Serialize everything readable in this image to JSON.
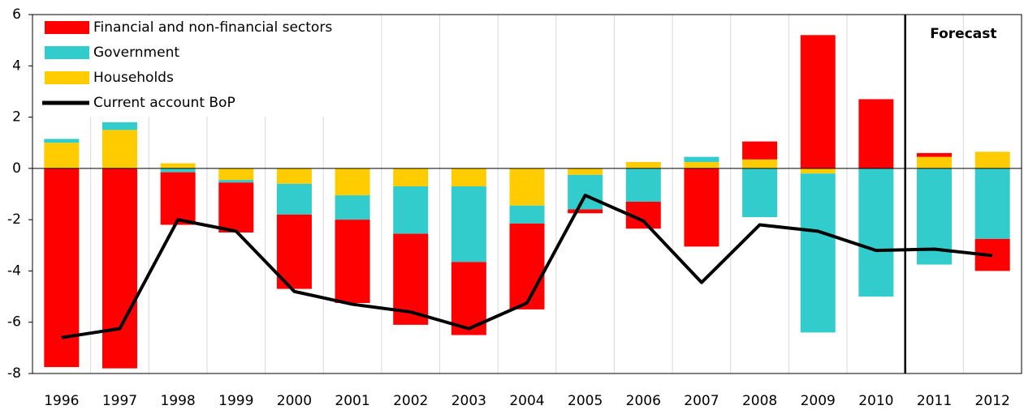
{
  "chart_data": {
    "type": "bar",
    "categories": [
      "1996",
      "1997",
      "1998",
      "1999",
      "2000",
      "2001",
      "2002",
      "2003",
      "2004",
      "2005",
      "2006",
      "2007",
      "2008",
      "2009",
      "2010",
      "2011",
      "2012"
    ],
    "series": [
      {
        "name": "Financial and non-financial sectors",
        "color": "#ff0000",
        "values": [
          -7.75,
          -7.8,
          -2.05,
          -1.95,
          -2.9,
          -3.25,
          -3.55,
          -2.85,
          -3.35,
          -0.15,
          -1.05,
          -3.05,
          0.7,
          5.2,
          2.7,
          0.15,
          -1.25
        ]
      },
      {
        "name": "Government",
        "color": "#33cccc",
        "values": [
          0.15,
          0.3,
          -0.15,
          -0.1,
          -1.2,
          -0.95,
          -1.85,
          -2.95,
          -0.7,
          -1.35,
          -1.3,
          0.2,
          -1.9,
          -6.2,
          -5.0,
          -3.75,
          -2.75
        ]
      },
      {
        "name": "Households",
        "color": "#ffcc00",
        "values": [
          1.0,
          1.5,
          0.2,
          -0.45,
          -0.6,
          -1.05,
          -0.7,
          -0.7,
          -1.45,
          -0.25,
          0.25,
          0.25,
          0.35,
          -0.2,
          0,
          0.45,
          0.65
        ]
      },
      {
        "name": "Current account BoP",
        "type": "line",
        "color": "#000000",
        "values": [
          -6.6,
          -6.25,
          -2.0,
          -2.45,
          -4.8,
          -5.3,
          -5.6,
          -6.25,
          -5.25,
          -1.05,
          -2.05,
          -4.45,
          -2.2,
          -2.45,
          -3.2,
          -3.15,
          -3.4
        ]
      }
    ],
    "stack_order": [
      "Households",
      "Government",
      "Financial and non-financial sectors"
    ],
    "ylim": [
      -8,
      6
    ],
    "yticks": [
      -8,
      -6,
      -4,
      -2,
      0,
      2,
      4,
      6
    ],
    "forecast_label": "Forecast",
    "forecast_from": "2011",
    "legend": "top-left",
    "grid": "vertical"
  }
}
